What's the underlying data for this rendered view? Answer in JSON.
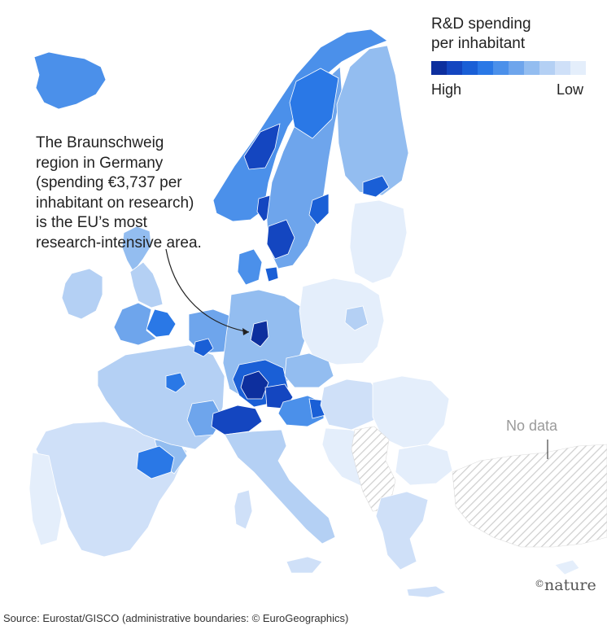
{
  "legend": {
    "title_line1": "R&D spending",
    "title_line2": "per inhabitant",
    "high_label": "High",
    "low_label": "Low",
    "colors": [
      "#0d2f9e",
      "#1446c0",
      "#1a5fd6",
      "#2a78e6",
      "#4b90ea",
      "#6ea5ec",
      "#93bdf0",
      "#b4d0f4",
      "#cfe0f8",
      "#e4eefb"
    ]
  },
  "annotation": {
    "lines": [
      "The Braunschweig",
      "region in Germany",
      "(spending €3,737 per",
      "inhabitant on research)",
      "is the EU’s most",
      "research-intensive area."
    ]
  },
  "no_data_label": "No data",
  "brand": {
    "mark": "©",
    "text": "nature"
  },
  "source": "Source: Eurostat/GISCO (administrative boundaries: © EuroGeographics)",
  "map_colors": {
    "high": "#0d2f9e",
    "mid_high": "#2a78e6",
    "mid": "#6ea5ec",
    "light": "#b4d0f4",
    "lighter": "#cfe0f8",
    "lightest": "#e4eefb",
    "no_data": "#d9d9d9",
    "border": "#ffffff"
  }
}
